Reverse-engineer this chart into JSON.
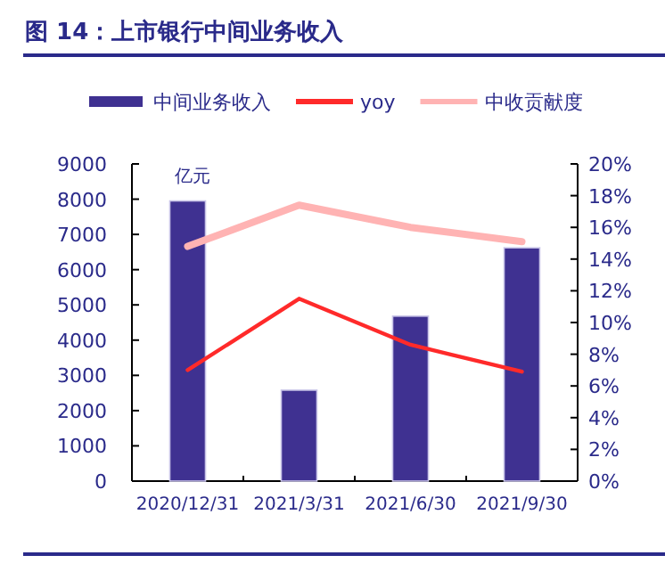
{
  "chart_data": {
    "type": "bar",
    "title": "图 14：上市银行中间业务收入",
    "ylabel": "亿元",
    "categories": [
      "2020/12/31",
      "2021/3/31",
      "2021/6/30",
      "2021/9/30"
    ],
    "series": [
      {
        "name": "中间业务收入",
        "color": "#3f3191",
        "values": [
          7950,
          2580,
          4680,
          6620
        ]
      },
      {
        "name": "yoy",
        "type": "line",
        "axis": "y2",
        "color": "#ff2a2a",
        "values": [
          7.0,
          11.5,
          8.6,
          6.9
        ]
      },
      {
        "name": "中收贡献度",
        "type": "line",
        "axis": "y2",
        "color": "#ffb3b3",
        "values": [
          14.8,
          17.4,
          16.0,
          15.1
        ]
      }
    ],
    "ylim": [
      0,
      9000
    ],
    "yticks": [
      0,
      1000,
      2000,
      3000,
      4000,
      5000,
      6000,
      7000,
      8000,
      9000
    ],
    "y2lim": [
      0,
      20
    ],
    "y2ticks": [
      {
        "value": 0,
        "label": "0%"
      },
      {
        "value": 2,
        "label": "2%"
      },
      {
        "value": 4,
        "label": "4%"
      },
      {
        "value": 6,
        "label": "6%"
      },
      {
        "value": 8,
        "label": "8%"
      },
      {
        "value": 10,
        "label": "10%"
      },
      {
        "value": 12,
        "label": "12%"
      },
      {
        "value": 14,
        "label": "14%"
      },
      {
        "value": 16,
        "label": "16%"
      },
      {
        "value": 18,
        "label": "18%"
      },
      {
        "value": 20,
        "label": "20%"
      }
    ],
    "legend": "top",
    "line_style": "solid"
  }
}
